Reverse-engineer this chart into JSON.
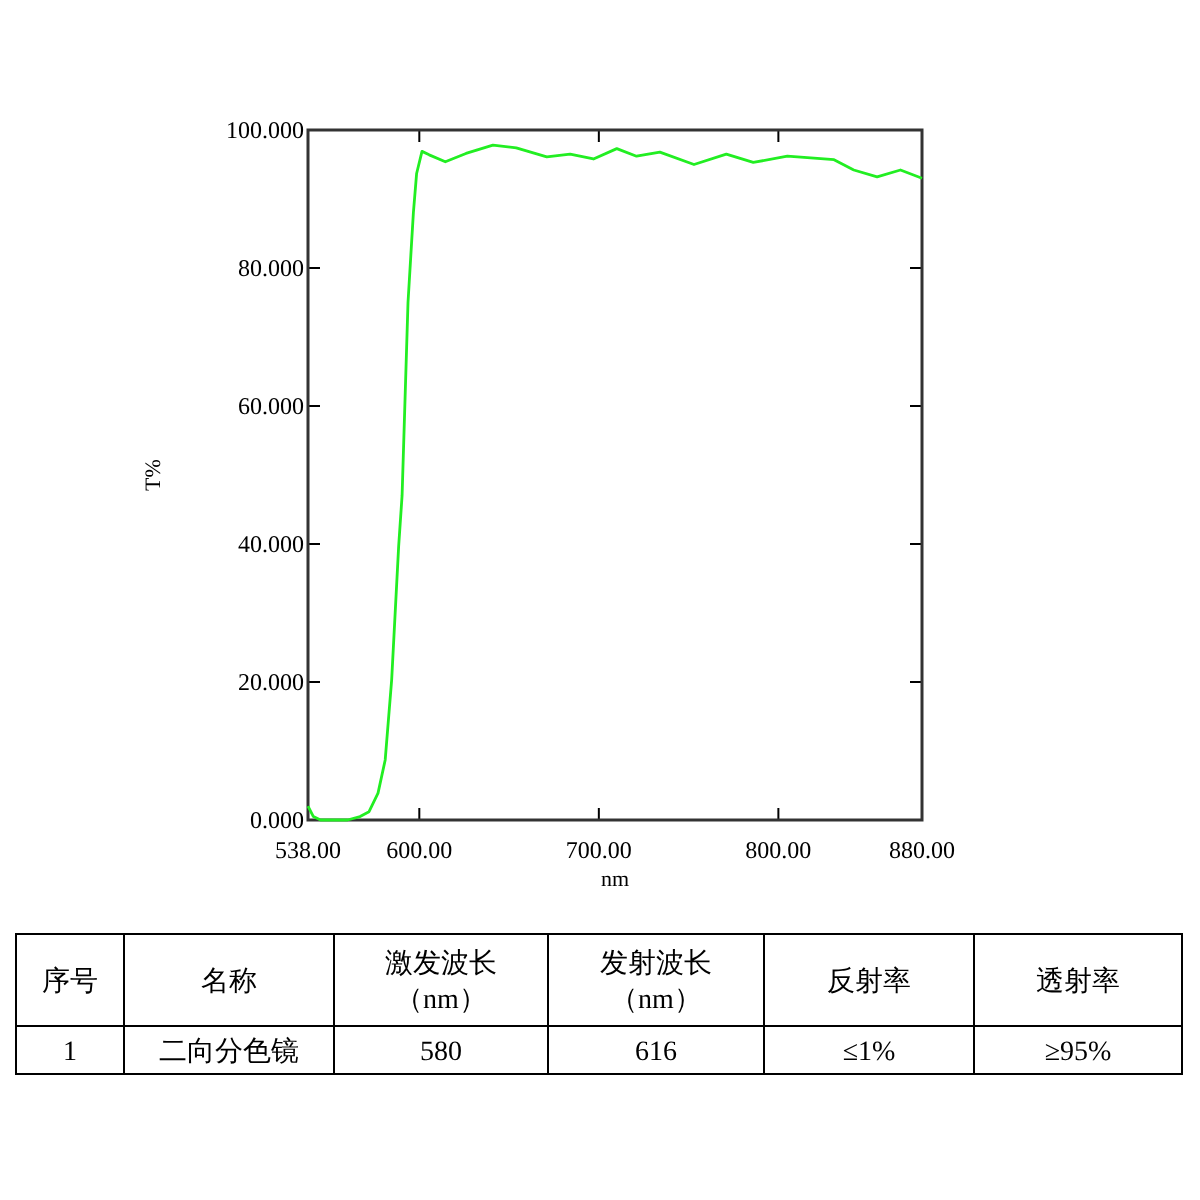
{
  "chart_data": [
    {
      "type": "line",
      "xlabel": "nm",
      "ylabel": "T%",
      "xlim": [
        538,
        880
      ],
      "ylim": [
        0,
        100
      ],
      "xticks": [
        {
          "value": 538,
          "label": "538.00"
        },
        {
          "value": 600,
          "label": "600.00"
        },
        {
          "value": 700,
          "label": "700.00"
        },
        {
          "value": 800,
          "label": "800.00"
        },
        {
          "value": 880,
          "label": "880.00"
        }
      ],
      "yticks": [
        {
          "value": 0,
          "label": "0.000"
        },
        {
          "value": 20,
          "label": "20.000"
        },
        {
          "value": 40,
          "label": "40.000"
        },
        {
          "value": 60,
          "label": "60.000"
        },
        {
          "value": 80,
          "label": "80.000"
        },
        {
          "value": 100,
          "label": "100.000"
        }
      ],
      "grid": false,
      "marker": "none",
      "line_style": "solid",
      "series": [
        {
          "color": "#22ee22",
          "x": [
            538,
            541,
            545,
            560,
            567,
            572,
            577,
            581,
            584.6,
            588.5,
            590.4,
            593.7,
            596.7,
            598.5,
            601.5,
            605.5,
            614.5,
            626,
            641,
            654,
            671,
            684,
            697,
            710,
            721,
            734,
            753,
            771,
            786,
            805,
            831,
            842,
            855,
            868,
            880
          ],
          "values": [
            2,
            0.5,
            0,
            0,
            0.5,
            1.2,
            3.9,
            8.7,
            20.3,
            39.7,
            47,
            75,
            88,
            93.7,
            96.9,
            96.4,
            95.4,
            96.6,
            97.8,
            97.4,
            96.1,
            96.5,
            95.8,
            97.3,
            96.2,
            96.8,
            95,
            96.5,
            95.3,
            96.2,
            95.7,
            94.2,
            93.2,
            94.2,
            93
          ]
        }
      ]
    },
    {
      "type": "other",
      "categories": [
        "序号",
        "名称",
        "激发波长（nm）",
        "发射波长（nm）",
        "反射率",
        "透射率"
      ],
      "cell_labels": [
        [
          "1",
          "二向分色镜",
          "580",
          "616",
          "≤1%",
          "≥95%"
        ]
      ]
    }
  ]
}
